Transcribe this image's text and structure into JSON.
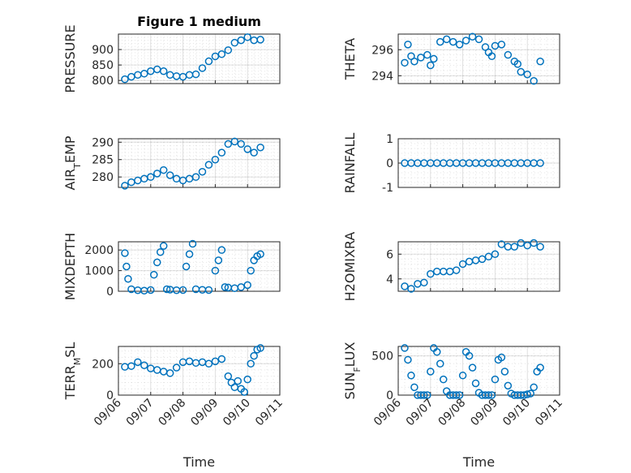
{
  "figure": {
    "marker_color": "#0072BD",
    "x_tick_labels": [
      "09/06",
      "09/07",
      "09/08",
      "09/09",
      "09/10",
      "09/11"
    ],
    "x_label": "Time"
  },
  "chart_data": [
    {
      "type": "scatter",
      "title": "Figure 1 medium",
      "ylabel": "PRESSURE",
      "ylim": [
        790,
        950
      ],
      "yticks": [
        800,
        850,
        900
      ],
      "xlim": [
        0,
        5
      ],
      "x": [
        0.2,
        0.4,
        0.6,
        0.8,
        1.0,
        1.2,
        1.4,
        1.6,
        1.8,
        2.0,
        2.2,
        2.4,
        2.6,
        2.8,
        3.0,
        3.2,
        3.4,
        3.6,
        3.8,
        4.0,
        4.2,
        4.4
      ],
      "y": [
        804,
        812,
        818,
        822,
        830,
        836,
        830,
        818,
        814,
        812,
        818,
        820,
        840,
        862,
        878,
        885,
        898,
        922,
        930,
        940,
        930,
        932
      ]
    },
    {
      "type": "scatter",
      "title": "",
      "ylabel": "THETA",
      "ylim": [
        293.4,
        297.2
      ],
      "yticks": [
        294,
        296
      ],
      "xlim": [
        0,
        5
      ],
      "x": [
        0.2,
        0.3,
        0.4,
        0.5,
        0.7,
        0.9,
        1.0,
        1.1,
        1.3,
        1.5,
        1.7,
        1.9,
        2.1,
        2.3,
        2.5,
        2.7,
        2.8,
        2.9,
        3.0,
        3.2,
        3.4,
        3.6,
        3.7,
        3.8,
        4.0,
        4.2,
        4.4
      ],
      "y": [
        295.0,
        296.4,
        295.5,
        295.1,
        295.4,
        295.6,
        294.8,
        295.3,
        296.6,
        296.8,
        296.6,
        296.4,
        296.7,
        297.0,
        296.8,
        296.2,
        295.8,
        295.5,
        296.3,
        296.4,
        295.6,
        295.1,
        294.9,
        294.3,
        294.1,
        293.6,
        295.1
      ]
    },
    {
      "type": "scatter",
      "title": "",
      "ylabel": "AIR_TEMP",
      "ylim": [
        277,
        291
      ],
      "yticks": [
        280,
        285,
        290
      ],
      "xlim": [
        0,
        5
      ],
      "x": [
        0.2,
        0.4,
        0.6,
        0.8,
        1.0,
        1.2,
        1.4,
        1.6,
        1.8,
        2.0,
        2.2,
        2.4,
        2.6,
        2.8,
        3.0,
        3.2,
        3.4,
        3.6,
        3.8,
        4.0,
        4.2,
        4.4
      ],
      "y": [
        277.5,
        278.5,
        279.0,
        279.5,
        280.0,
        281.0,
        282.0,
        280.5,
        279.5,
        279.0,
        279.5,
        280.0,
        281.5,
        283.5,
        285.0,
        287.0,
        289.5,
        290.2,
        289.5,
        288.0,
        287.0,
        288.5
      ]
    },
    {
      "type": "scatter",
      "title": "",
      "ylabel": "RAINFALL",
      "ylim": [
        -1,
        1
      ],
      "yticks": [
        -1,
        0,
        1
      ],
      "xlim": [
        0,
        5
      ],
      "x": [
        0.2,
        0.4,
        0.6,
        0.8,
        1.0,
        1.2,
        1.4,
        1.6,
        1.8,
        2.0,
        2.2,
        2.4,
        2.6,
        2.8,
        3.0,
        3.2,
        3.4,
        3.6,
        3.8,
        4.0,
        4.2,
        4.4
      ],
      "y": [
        0,
        0,
        0,
        0,
        0,
        0,
        0,
        0,
        0,
        0,
        0,
        0,
        0,
        0,
        0,
        0,
        0,
        0,
        0,
        0,
        0,
        0
      ]
    },
    {
      "type": "scatter",
      "title": "",
      "ylabel": "MIXDEPTH",
      "ylim": [
        0,
        2400
      ],
      "yticks": [
        0,
        1000,
        2000
      ],
      "xlim": [
        0,
        5
      ],
      "x": [
        0.2,
        0.25,
        0.3,
        0.4,
        0.6,
        0.8,
        1.0,
        1.1,
        1.2,
        1.3,
        1.4,
        1.5,
        1.6,
        1.8,
        2.0,
        2.1,
        2.2,
        2.3,
        2.4,
        2.6,
        2.8,
        3.0,
        3.1,
        3.2,
        3.3,
        3.4,
        3.6,
        3.8,
        4.0,
        4.1,
        4.2,
        4.3,
        4.4
      ],
      "y": [
        1850,
        1200,
        600,
        100,
        50,
        30,
        60,
        800,
        1400,
        1900,
        2200,
        100,
        80,
        50,
        60,
        1200,
        1800,
        2300,
        100,
        70,
        60,
        1000,
        1500,
        2000,
        200,
        180,
        150,
        200,
        300,
        1000,
        1500,
        1700,
        1800
      ]
    },
    {
      "type": "scatter",
      "title": "",
      "ylabel": "H2OMIXRA",
      "ylim": [
        3,
        7
      ],
      "yticks": [
        4,
        6
      ],
      "xlim": [
        0,
        5
      ],
      "x": [
        0.2,
        0.4,
        0.6,
        0.8,
        1.0,
        1.2,
        1.4,
        1.6,
        1.8,
        2.0,
        2.2,
        2.4,
        2.6,
        2.8,
        3.0,
        3.2,
        3.4,
        3.6,
        3.8,
        4.0,
        4.2,
        4.4
      ],
      "y": [
        3.4,
        3.2,
        3.6,
        3.7,
        4.4,
        4.6,
        4.6,
        4.6,
        4.7,
        5.2,
        5.4,
        5.5,
        5.6,
        5.8,
        6.0,
        6.8,
        6.6,
        6.6,
        6.9,
        6.7,
        6.9,
        6.6
      ]
    },
    {
      "type": "scatter",
      "title": "",
      "ylabel": "TERR_MSL",
      "ylim": [
        0,
        310
      ],
      "yticks": [
        0,
        200
      ],
      "xlim": [
        0,
        5
      ],
      "x": [
        0.2,
        0.4,
        0.6,
        0.8,
        1.0,
        1.2,
        1.4,
        1.6,
        1.8,
        2.0,
        2.2,
        2.4,
        2.6,
        2.8,
        3.0,
        3.2,
        3.4,
        3.5,
        3.6,
        3.7,
        3.8,
        3.9,
        4.0,
        4.1,
        4.2,
        4.3,
        4.4
      ],
      "y": [
        180,
        185,
        210,
        190,
        170,
        160,
        150,
        140,
        175,
        210,
        215,
        205,
        210,
        200,
        215,
        230,
        120,
        80,
        50,
        90,
        40,
        20,
        100,
        200,
        250,
        290,
        300
      ]
    },
    {
      "type": "scatter",
      "title": "",
      "ylabel": "SUN_FLUX",
      "ylim": [
        0,
        620
      ],
      "yticks": [
        0,
        500
      ],
      "xlim": [
        0,
        5
      ],
      "x": [
        0.2,
        0.3,
        0.4,
        0.5,
        0.6,
        0.7,
        0.8,
        0.9,
        1.0,
        1.1,
        1.2,
        1.3,
        1.4,
        1.5,
        1.6,
        1.7,
        1.8,
        1.9,
        2.0,
        2.1,
        2.2,
        2.3,
        2.4,
        2.5,
        2.6,
        2.7,
        2.8,
        2.9,
        3.0,
        3.1,
        3.2,
        3.3,
        3.4,
        3.5,
        3.6,
        3.7,
        3.8,
        3.9,
        4.0,
        4.1,
        4.2,
        4.3,
        4.4
      ],
      "y": [
        600,
        450,
        250,
        100,
        0,
        0,
        0,
        0,
        300,
        600,
        550,
        400,
        200,
        50,
        0,
        0,
        0,
        0,
        250,
        550,
        500,
        350,
        150,
        30,
        0,
        0,
        0,
        0,
        200,
        450,
        480,
        300,
        120,
        20,
        0,
        0,
        0,
        0,
        10,
        20,
        100,
        300,
        350
      ]
    }
  ]
}
